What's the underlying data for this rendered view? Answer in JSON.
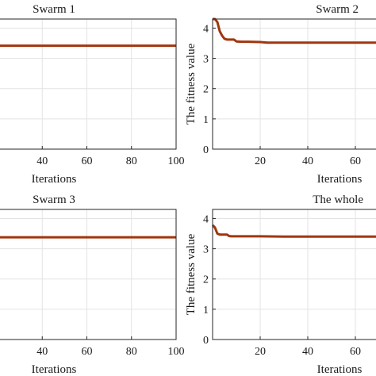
{
  "chart_data": [
    {
      "type": "line",
      "title": "Swarm 1",
      "xlabel": "Iterations",
      "ylabel": "",
      "xlim": [
        20,
        100
      ],
      "ylim": [
        0,
        4.3
      ],
      "xticks": [
        40,
        60,
        80,
        100
      ],
      "yticks": [],
      "grid": true,
      "series": [
        {
          "color": "#a0360f",
          "x": [
            20,
            100
          ],
          "y": [
            3.42,
            3.42
          ]
        }
      ]
    },
    {
      "type": "line",
      "title": "Swarm 2",
      "xlabel": "Iterations",
      "ylabel": "The fitness value",
      "xlim": [
        0,
        70
      ],
      "ylim": [
        0,
        4.3
      ],
      "xticks": [
        20,
        40,
        60
      ],
      "yticks": [
        0,
        1,
        2,
        3,
        4
      ],
      "grid": true,
      "series": [
        {
          "color": "#a0360f",
          "x": [
            0,
            1,
            2,
            3,
            4,
            5,
            6,
            7,
            8,
            9,
            10,
            12,
            15,
            20,
            23,
            25,
            30,
            40,
            50,
            60,
            70
          ],
          "y": [
            4.3,
            4.3,
            4.2,
            3.9,
            3.75,
            3.65,
            3.62,
            3.62,
            3.62,
            3.62,
            3.56,
            3.55,
            3.55,
            3.54,
            3.52,
            3.52,
            3.52,
            3.52,
            3.52,
            3.52,
            3.52
          ]
        }
      ]
    },
    {
      "type": "line",
      "title": "Swarm 3",
      "xlabel": "Iterations",
      "ylabel": "",
      "xlim": [
        20,
        100
      ],
      "ylim": [
        0,
        4.3
      ],
      "xticks": [
        40,
        60,
        80,
        100
      ],
      "yticks": [],
      "grid": true,
      "series": [
        {
          "color": "#a0360f",
          "x": [
            20,
            100
          ],
          "y": [
            3.38,
            3.38
          ]
        }
      ]
    },
    {
      "type": "line",
      "title": "The whole",
      "xlabel": "Iterations",
      "ylabel": "The fitness value",
      "xlim": [
        0,
        70
      ],
      "ylim": [
        0,
        4.3
      ],
      "xticks": [
        20,
        40,
        60
      ],
      "yticks": [
        0,
        1,
        2,
        3,
        4
      ],
      "grid": true,
      "series": [
        {
          "color": "#a0360f",
          "x": [
            0,
            1,
            2,
            3,
            4,
            5,
            6,
            7,
            8,
            10,
            15,
            20,
            30,
            40,
            50,
            60,
            70
          ],
          "y": [
            3.78,
            3.7,
            3.5,
            3.47,
            3.47,
            3.47,
            3.47,
            3.42,
            3.41,
            3.41,
            3.41,
            3.41,
            3.4,
            3.4,
            3.4,
            3.4,
            3.4
          ]
        }
      ]
    }
  ]
}
